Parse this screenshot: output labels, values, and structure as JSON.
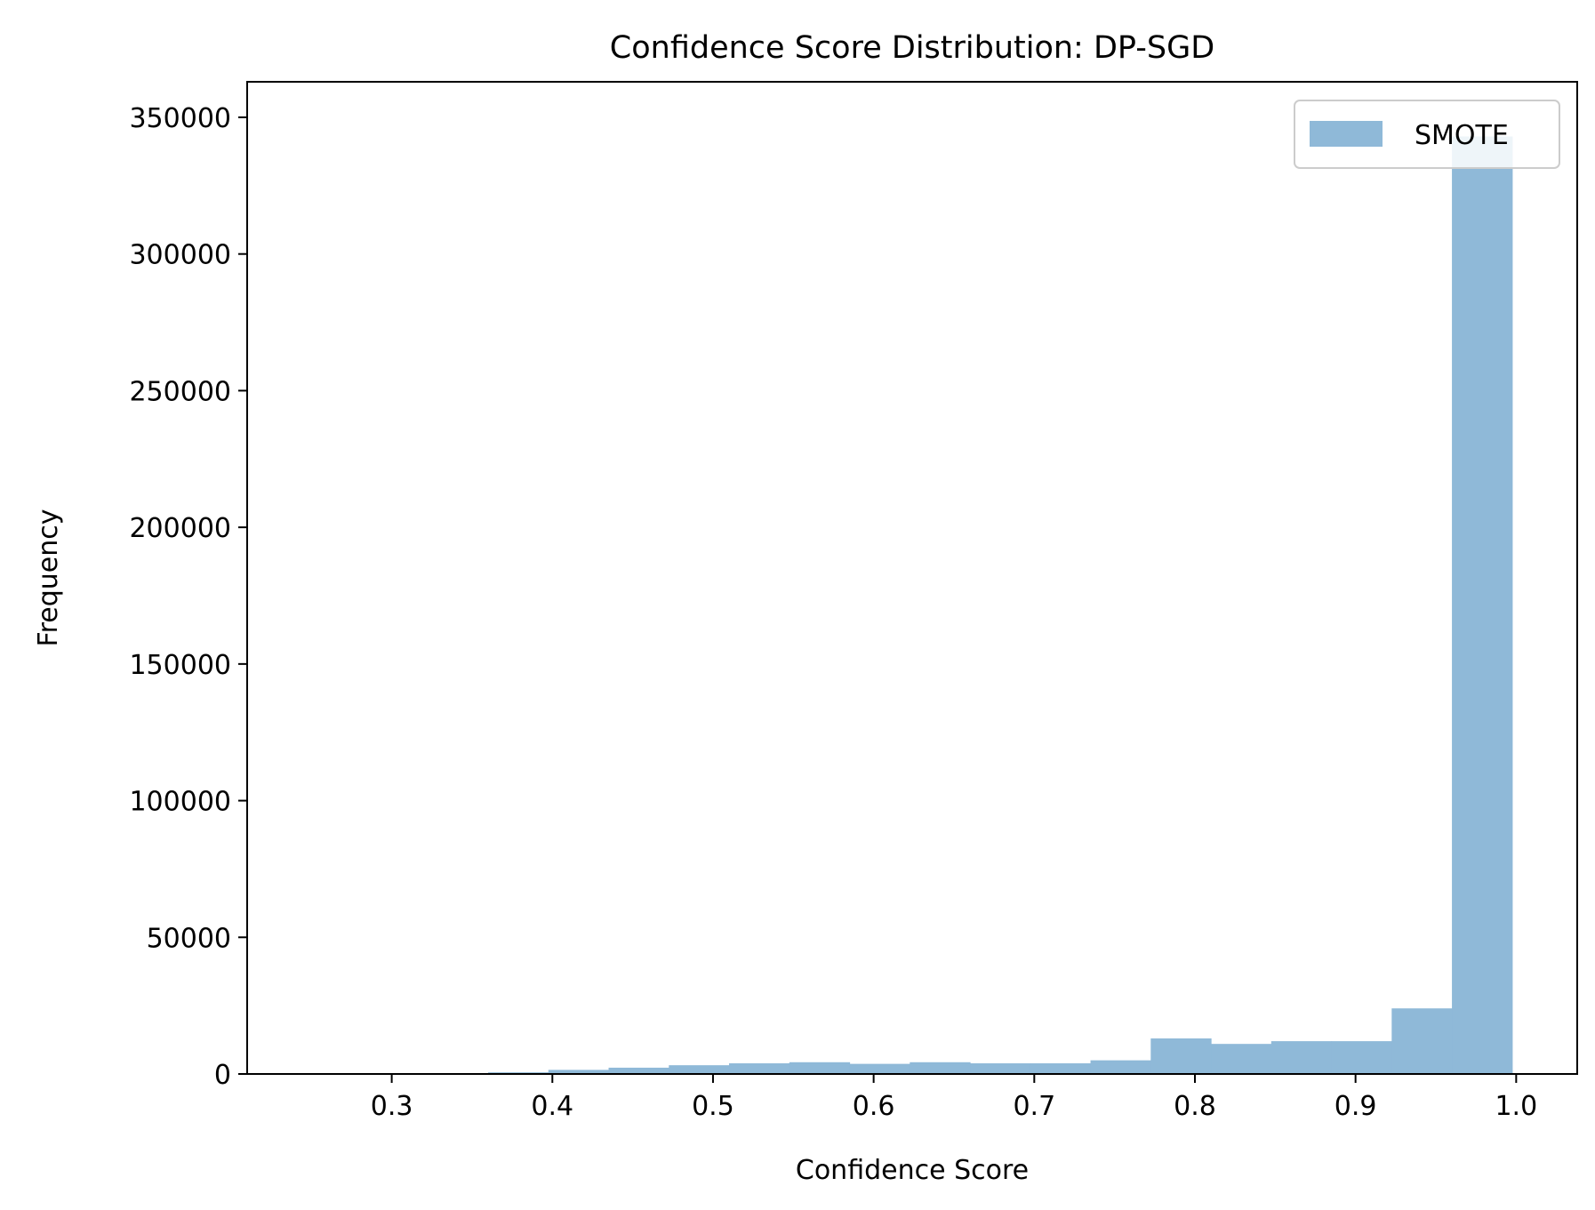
{
  "chart_data": {
    "type": "histogram",
    "title": "Confidence Score Distribution: DP-SGD",
    "xlabel": "Confidence Score",
    "ylabel": "Frequency",
    "xlim": [
      0.21,
      1.038
    ],
    "ylim": [
      0,
      363000
    ],
    "x_ticks": [
      0.3,
      0.4,
      0.5,
      0.6,
      0.7,
      0.8,
      0.9,
      1.0
    ],
    "x_tick_labels": [
      "0.3",
      "0.4",
      "0.5",
      "0.6",
      "0.7",
      "0.8",
      "0.9",
      "1.0"
    ],
    "y_ticks": [
      0,
      50000,
      100000,
      150000,
      200000,
      250000,
      300000,
      350000
    ],
    "y_tick_labels": [
      "0",
      "50000",
      "100000",
      "150000",
      "200000",
      "250000",
      "300000",
      "350000"
    ],
    "grid": false,
    "legend_position": "top-right",
    "series": [
      {
        "name": "SMOTE",
        "color": "#8fb9d8",
        "bin_edges": [
          0.2475,
          0.285,
          0.3225,
          0.36,
          0.3975,
          0.435,
          0.4725,
          0.51,
          0.5475,
          0.585,
          0.6225,
          0.66,
          0.6975,
          0.735,
          0.7725,
          0.81,
          0.8475,
          0.885,
          0.9225,
          0.96,
          0.9975
        ],
        "counts": [
          100,
          200,
          300,
          600,
          1500,
          2300,
          3200,
          3900,
          4300,
          3700,
          4300,
          3900,
          3900,
          5000,
          13000,
          11000,
          12000,
          12000,
          24000,
          343000
        ]
      }
    ]
  }
}
